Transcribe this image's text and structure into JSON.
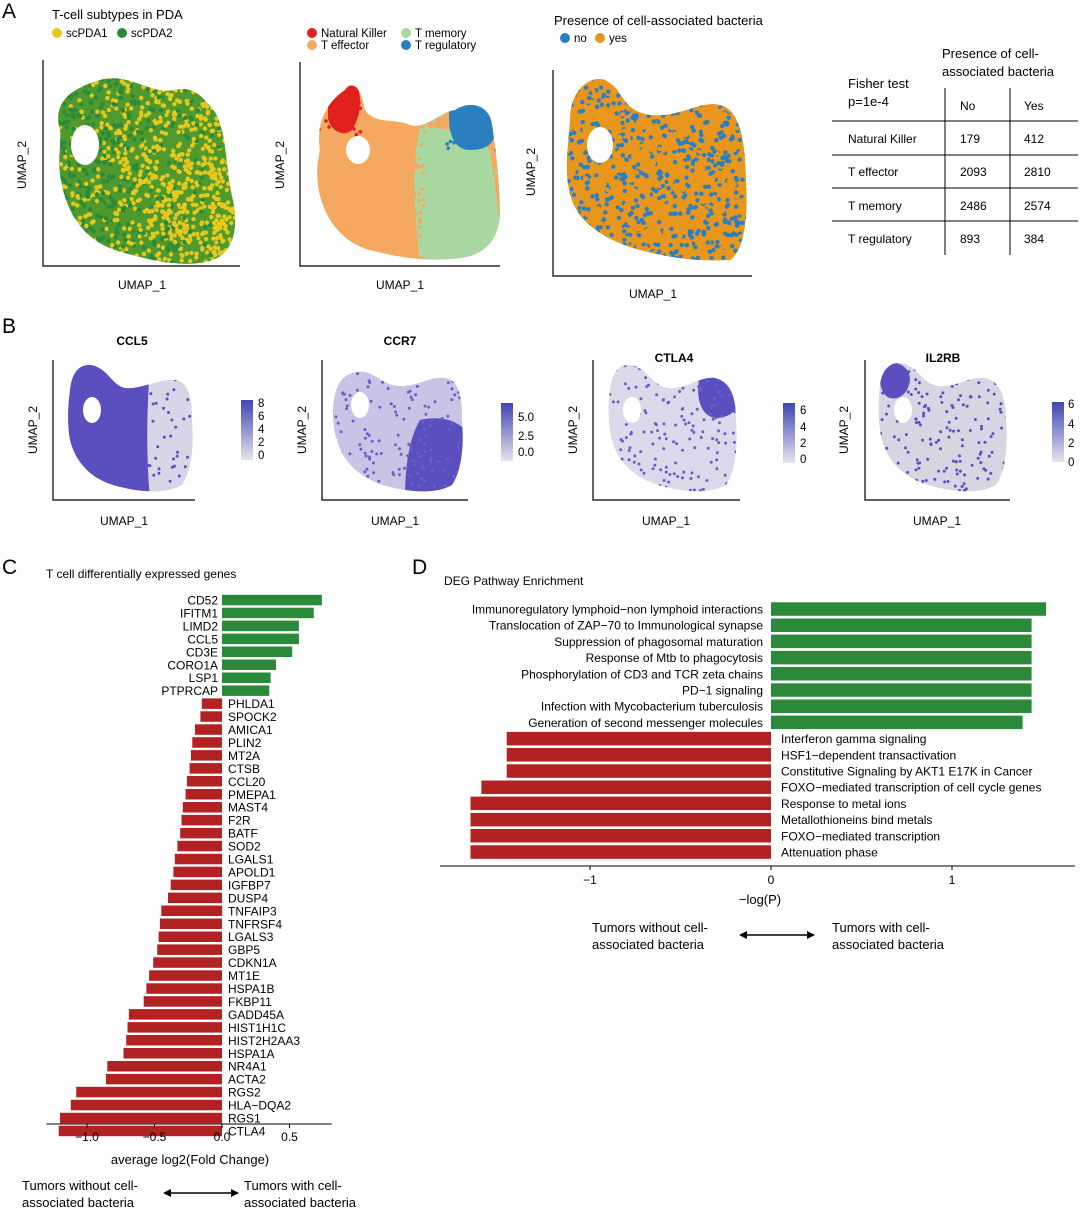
{
  "colors": {
    "scPDA1": "#e8c81e",
    "scPDA2": "#2a8a3a",
    "nk": "#e0201c",
    "teff": "#f4a860",
    "tmem": "#a8d8a0",
    "treg": "#2a7fc0",
    "bact_no": "#2a7fc0",
    "bact_yes": "#e8961c",
    "feat_low": "#d8d8e4",
    "feat_high": "#4a4ab8",
    "bar_pos": "#2a8a3a",
    "bar_neg": "#b22222"
  },
  "panelA": {
    "letter": "A",
    "umap1": {
      "legend_title": "T-cell subtypes in PDA",
      "legend": [
        "scPDA1",
        "scPDA2"
      ],
      "xlabel": "UMAP_1",
      "ylabel": "UMAP_2"
    },
    "umap2": {
      "legend": [
        "Natural Killer",
        "T memory",
        "T effector",
        "T regulatory"
      ],
      "xlabel": "UMAP_1",
      "ylabel": "UMAP_2"
    },
    "umap3": {
      "legend_title": "Presence of cell-associated bacteria",
      "legend": [
        "no",
        "yes"
      ],
      "xlabel": "UMAP_1",
      "ylabel": "UMAP_2"
    },
    "fisher": {
      "test_label": "Fisher test",
      "p_label": "p=1e-4",
      "header_line1": "Presence of cell-",
      "header_line2": "associated bacteria",
      "col_no": "No",
      "col_yes": "Yes",
      "rows": [
        {
          "label": "Natural Killer",
          "no": "179",
          "yes": "412"
        },
        {
          "label": "T effector",
          "no": "2093",
          "yes": "2810"
        },
        {
          "label": "T memory",
          "no": "2486",
          "yes": "2574"
        },
        {
          "label": "T regulatory",
          "no": "893",
          "yes": "384"
        }
      ]
    }
  },
  "panelB": {
    "letter": "B",
    "plots": [
      {
        "gene": "CCL5",
        "ticks": [
          "8",
          "6",
          "4",
          "2",
          "0"
        ],
        "xlabel": "UMAP_1",
        "ylabel": "UMAP_2"
      },
      {
        "gene": "CCR7",
        "ticks": [
          "5.0",
          "2.5",
          "0.0"
        ],
        "xlabel": "UMAP_1",
        "ylabel": "UMAP_2"
      },
      {
        "gene": "CTLA4",
        "ticks": [
          "6",
          "4",
          "2",
          "0"
        ],
        "xlabel": "UMAP_1",
        "ylabel": "UMAP_2"
      },
      {
        "gene": "IL2RB",
        "ticks": [
          "6",
          "4",
          "2",
          "0"
        ],
        "xlabel": "UMAP_1",
        "ylabel": "UMAP_2"
      }
    ]
  },
  "panelC": {
    "letter": "C",
    "arrow_left_1": "Tumors without cell-",
    "arrow_left_2": "associated bacteria",
    "arrow_right_1": "Tumors with cell-",
    "arrow_right_2": "associated bacteria"
  },
  "panelD": {
    "letter": "D",
    "arrow_left_1": "Tumors without cell-",
    "arrow_left_2": "associated bacteria",
    "arrow_right_1": "Tumors with cell-",
    "arrow_right_2": "associated bacteria"
  },
  "chart_data": [
    {
      "type": "bar",
      "orientation": "horizontal",
      "title": "T cell differentially expressed genes",
      "xlabel": "average log2(Fold Change)",
      "xlim": [
        -1.3,
        0.85
      ],
      "xticks": [
        -1.0,
        -0.5,
        0.0,
        0.5
      ],
      "xtick_labels": [
        "−1.0",
        "−0.5",
        "0.0",
        "0.5"
      ],
      "categories": [
        "CD52",
        "IFITM1",
        "LIMD2",
        "CCL5",
        "CD3E",
        "CORO1A",
        "LSP1",
        "PTPRCAP",
        "PHLDA1",
        "SPOCK2",
        "AMICA1",
        "PLIN2",
        "MT2A",
        "CTSB",
        "CCL20",
        "PMEPA1",
        "MAST4",
        "F2R",
        "BATF",
        "SOD2",
        "LGALS1",
        "APOLD1",
        "IGFBP7",
        "DUSP4",
        "TNFAIP3",
        "TNFRSF4",
        "LGALS3",
        "GBP5",
        "CDKN1A",
        "MT1E",
        "HSPA1B",
        "FKBP11",
        "GADD45A",
        "HIST1H1C",
        "HIST2H2AA3",
        "HSPA1A",
        "NR4A1",
        "ACTA2",
        "RGS2",
        "HLA−DQA2",
        "RGS1",
        "CTLA4"
      ],
      "values": [
        0.74,
        0.68,
        0.57,
        0.57,
        0.52,
        0.4,
        0.36,
        0.35,
        -0.15,
        -0.16,
        -0.2,
        -0.22,
        -0.23,
        -0.24,
        -0.26,
        -0.27,
        -0.29,
        -0.3,
        -0.31,
        -0.33,
        -0.35,
        -0.36,
        -0.38,
        -0.4,
        -0.45,
        -0.46,
        -0.47,
        -0.48,
        -0.51,
        -0.54,
        -0.56,
        -0.58,
        -0.69,
        -0.7,
        -0.71,
        -0.73,
        -0.85,
        -0.86,
        -1.08,
        -1.12,
        -1.2,
        -1.21
      ]
    },
    {
      "type": "bar",
      "orientation": "horizontal",
      "title": "DEG Pathway Enrichment",
      "xlabel": "−log(P)",
      "xlim": [
        -1.65,
        1.65
      ],
      "xticks": [
        -1,
        0,
        1
      ],
      "xtick_labels": [
        "−1",
        "0",
        "1"
      ],
      "categories": [
        "Immunoregulatory lymphoid−non lymphoid interactions",
        "Translocation of ZAP−70 to Immunological synapse",
        "Suppression of phagosomal maturation",
        "Response of Mtb to phagocytosis",
        "Phosphorylation of CD3 and TCR zeta chains",
        "PD−1 signaling",
        "Infection with Mycobacterium tuberculosis",
        "Generation of second messenger molecules",
        "Interferon gamma signaling",
        "HSF1−dependent transactivation",
        "Constitutive Signaling by AKT1 E17K in Cancer",
        "FOXO−mediated transcription of cell cycle genes",
        "Response to metal ions",
        "Metallothioneins bind metals",
        "FOXO−mediated transcription",
        "Attenuation phase"
      ],
      "values": [
        1.52,
        1.44,
        1.44,
        1.44,
        1.44,
        1.44,
        1.44,
        1.39,
        -1.46,
        -1.46,
        -1.46,
        -1.6,
        -1.66,
        -1.66,
        -1.66,
        -1.66
      ]
    }
  ]
}
